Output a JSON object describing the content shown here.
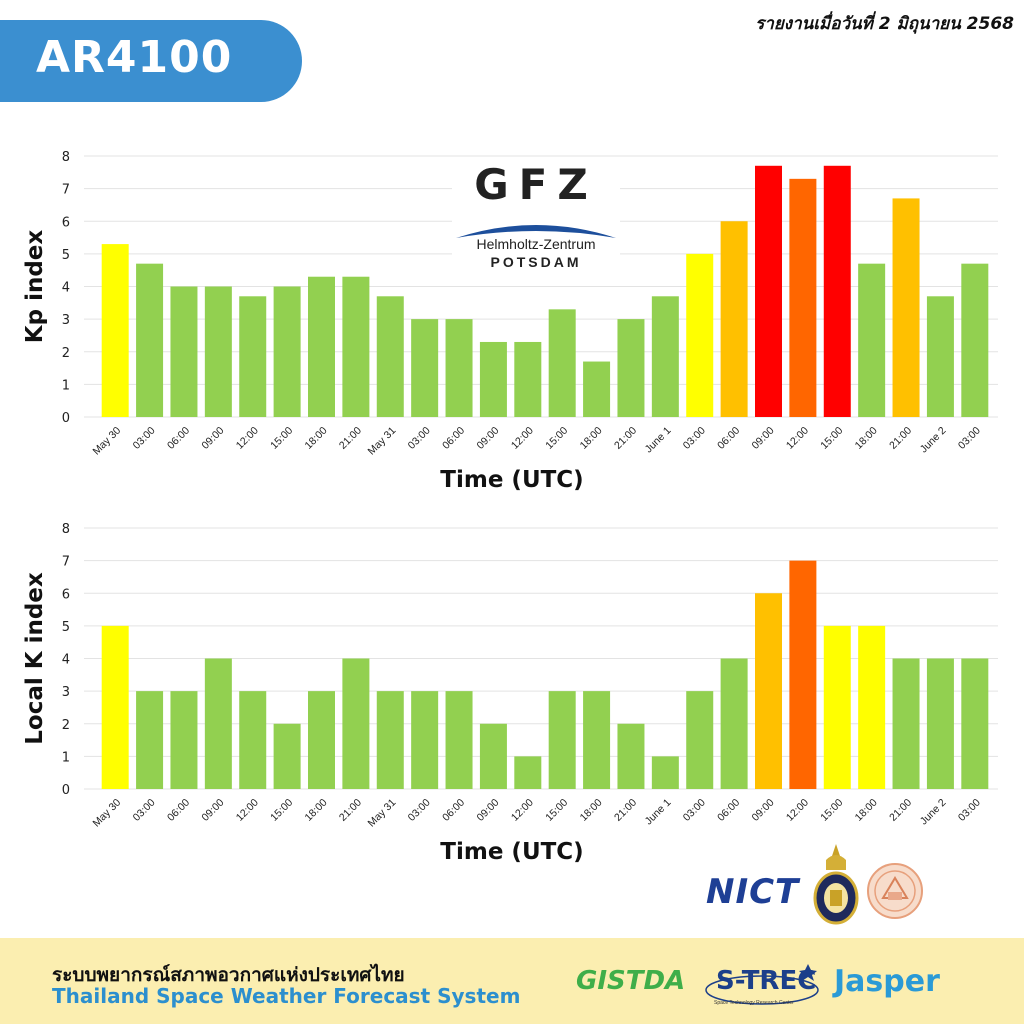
{
  "header": {
    "title": "AR4100",
    "report_date": "รายงานเมื่อวันที่ 2 มิถุนายน 2568"
  },
  "logos": {
    "gfz_letters": "GFZ",
    "gfz_line1": "Helmholtz-Zentrum",
    "gfz_line2": "POTSDAM",
    "nict": "NICT",
    "gistda": "GISTDA",
    "strec": "S-TREC",
    "strec_sub": "Space Technology Research Center",
    "jasper": "Jasper"
  },
  "footer": {
    "thai_text": "ระบบพยากรณ์สภาพอวกาศแห่งประเทศไทย",
    "english_text": "Thailand Space Weather Forecast System"
  },
  "colors": {
    "header_blue": "#3b8fd0",
    "footer_bg": "#fbeeb0",
    "footer_en_text": "#2c8fce",
    "kp_level_green": "#92d050",
    "kp_level_yellow": "#ffff00",
    "kp_level_gold": "#ffc000",
    "kp_level_orange": "#ff6600",
    "kp_level_red": "#ff0000",
    "gridline": "#e3e3e3"
  },
  "chart_data": [
    {
      "type": "bar",
      "title": "",
      "xlabel": "Time (UTC)",
      "ylabel": "Kp index",
      "ylim": [
        0,
        8
      ],
      "yticks": [
        0,
        1,
        2,
        3,
        4,
        5,
        6,
        7,
        8
      ],
      "grid": true,
      "categories": [
        "May 30",
        "03:00",
        "06:00",
        "09:00",
        "12:00",
        "15:00",
        "18:00",
        "21:00",
        "May 31",
        "03:00",
        "06:00",
        "09:00",
        "12:00",
        "15:00",
        "18:00",
        "21:00",
        "June 1",
        "03:00",
        "06:00",
        "09:00",
        "12:00",
        "15:00",
        "18:00",
        "21:00",
        "June 2",
        "03:00"
      ],
      "values": [
        5.3,
        4.7,
        4.0,
        4.0,
        3.7,
        4.0,
        4.3,
        4.3,
        3.7,
        3.0,
        3.0,
        2.3,
        2.3,
        3.3,
        1.7,
        3.0,
        3.7,
        5.0,
        6.0,
        7.7,
        7.3,
        7.7,
        4.7,
        6.7,
        3.7,
        4.7
      ],
      "bar_colors": [
        "#ffff00",
        "#92d050",
        "#92d050",
        "#92d050",
        "#92d050",
        "#92d050",
        "#92d050",
        "#92d050",
        "#92d050",
        "#92d050",
        "#92d050",
        "#92d050",
        "#92d050",
        "#92d050",
        "#92d050",
        "#92d050",
        "#92d050",
        "#ffff00",
        "#ffc000",
        "#ff0000",
        "#ff6600",
        "#ff0000",
        "#92d050",
        "#ffc000",
        "#92d050",
        "#92d050"
      ]
    },
    {
      "type": "bar",
      "title": "",
      "xlabel": "Time (UTC)",
      "ylabel": "Local K index",
      "ylim": [
        0,
        8
      ],
      "yticks": [
        0,
        1,
        2,
        3,
        4,
        5,
        6,
        7,
        8
      ],
      "grid": true,
      "categories": [
        "May 30",
        "03:00",
        "06:00",
        "09:00",
        "12:00",
        "15:00",
        "18:00",
        "21:00",
        "May 31",
        "03:00",
        "06:00",
        "09:00",
        "12:00",
        "15:00",
        "18:00",
        "21:00",
        "June 1",
        "03:00",
        "06:00",
        "09:00",
        "12:00",
        "15:00",
        "18:00",
        "21:00",
        "June 2",
        "03:00"
      ],
      "values": [
        5,
        3,
        3,
        4,
        3,
        2,
        3,
        4,
        3,
        3,
        3,
        2,
        1,
        3,
        3,
        2,
        1,
        3,
        4,
        6,
        7,
        5,
        5,
        4,
        4,
        4
      ],
      "bar_colors": [
        "#ffff00",
        "#92d050",
        "#92d050",
        "#92d050",
        "#92d050",
        "#92d050",
        "#92d050",
        "#92d050",
        "#92d050",
        "#92d050",
        "#92d050",
        "#92d050",
        "#92d050",
        "#92d050",
        "#92d050",
        "#92d050",
        "#92d050",
        "#92d050",
        "#92d050",
        "#ffc000",
        "#ff6600",
        "#ffff00",
        "#ffff00",
        "#92d050",
        "#92d050",
        "#92d050"
      ]
    }
  ]
}
